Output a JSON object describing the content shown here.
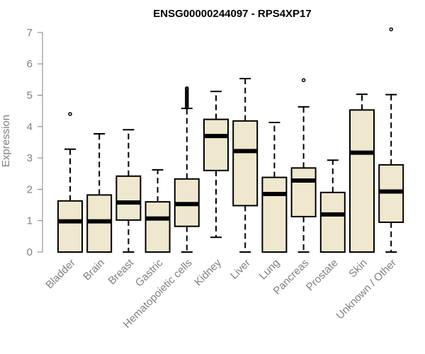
{
  "chart_data": {
    "type": "boxplot",
    "title": "ENSG00000244097 - RPS4XP17",
    "xlabel": "",
    "ylabel": "Expression",
    "ylim": [
      0,
      7
    ],
    "yticks": [
      0,
      1,
      2,
      3,
      4,
      5,
      6,
      7
    ],
    "categories": [
      "Bladder",
      "Brain",
      "Breast",
      "Gastric",
      "Hematopoietic cells",
      "Kidney",
      "Liver",
      "Lung",
      "Pancreas",
      "Prostate",
      "Skin",
      "Unknown / Other"
    ],
    "boxes": [
      {
        "name": "Bladder",
        "min": 0,
        "q1": 0,
        "median": 0.98,
        "q3": 1.63,
        "max": 3.28,
        "outliers": [
          4.4
        ]
      },
      {
        "name": "Brain",
        "min": 0,
        "q1": 0,
        "median": 0.98,
        "q3": 1.82,
        "max": 3.77,
        "outliers": []
      },
      {
        "name": "Breast",
        "min": 0,
        "q1": 1.02,
        "median": 1.58,
        "q3": 2.42,
        "max": 3.9,
        "outliers": []
      },
      {
        "name": "Gastric",
        "min": 0,
        "q1": 0,
        "median": 1.07,
        "q3": 1.6,
        "max": 2.62,
        "outliers": []
      },
      {
        "name": "Hematopoietic cells",
        "min": 0,
        "q1": 0.82,
        "median": 1.53,
        "q3": 2.33,
        "max": 4.58,
        "outliers": [
          4.62,
          4.67,
          4.72,
          4.77,
          4.82,
          4.87,
          4.92,
          4.97,
          5.02,
          5.07,
          5.12,
          5.18,
          5.22
        ]
      },
      {
        "name": "Kidney",
        "min": 0.47,
        "q1": 2.6,
        "median": 3.7,
        "q3": 4.23,
        "max": 5.12,
        "outliers": []
      },
      {
        "name": "Liver",
        "min": 0,
        "q1": 1.48,
        "median": 3.22,
        "q3": 4.18,
        "max": 5.53,
        "outliers": []
      },
      {
        "name": "Lung",
        "min": 0,
        "q1": 0,
        "median": 1.85,
        "q3": 2.38,
        "max": 4.13,
        "outliers": []
      },
      {
        "name": "Pancreas",
        "min": 0,
        "q1": 1.13,
        "median": 2.28,
        "q3": 2.68,
        "max": 4.63,
        "outliers": [
          5.48
        ]
      },
      {
        "name": "Prostate",
        "min": 0,
        "q1": 0,
        "median": 1.2,
        "q3": 1.9,
        "max": 2.93,
        "outliers": []
      },
      {
        "name": "Skin",
        "min": 0,
        "q1": 0,
        "median": 3.17,
        "q3": 4.53,
        "max": 5.03,
        "outliers": []
      },
      {
        "name": "Unknown / Other",
        "min": 0,
        "q1": 0.95,
        "median": 1.93,
        "q3": 2.78,
        "max": 5.02,
        "outliers": [
          7.1
        ]
      }
    ],
    "box_fill": "#efe8cf",
    "grid": false
  }
}
